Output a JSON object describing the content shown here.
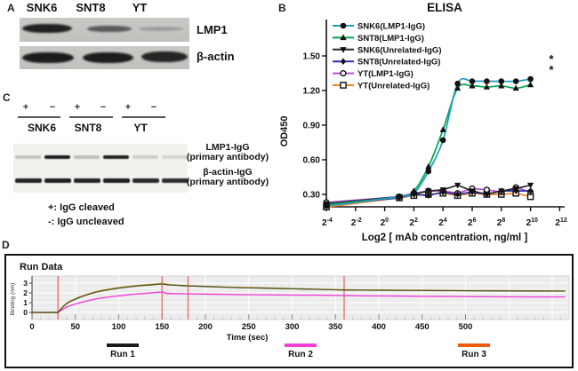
{
  "panels": {
    "a_label": "A",
    "b_label": "B",
    "c_label": "C",
    "d_label": "D"
  },
  "panel_a": {
    "lane_labels": [
      "SNK6",
      "SNT8",
      "YT"
    ],
    "row_labels": [
      "LMP1",
      "β-actin"
    ],
    "lmp1_band_opacities": [
      0.92,
      0.6,
      0.22
    ],
    "actin_band_opacities": [
      0.95,
      0.95,
      0.9
    ]
  },
  "panel_c": {
    "cleave_signs": [
      "+",
      "−",
      "+",
      "−",
      "+",
      "−"
    ],
    "cell_lines": [
      "SNK6",
      "SNT8",
      "YT"
    ],
    "row1_label_line1": "LMP1-IgG",
    "row1_label_line2": "(primary antibody)",
    "row2_label_line1": "β-actin-IgG",
    "row2_label_line2": "(primary antibody)",
    "lmp1_band_opacities": [
      0.2,
      0.95,
      0.22,
      0.92,
      0.15,
      0.12
    ],
    "actin_band_opacities": [
      0.92,
      0.95,
      0.92,
      0.95,
      0.9,
      0.88
    ],
    "footnotes": [
      "+: IgG cleaved",
      "-: IgG uncleaved"
    ]
  },
  "chart_data": [
    {
      "type": "line",
      "title": "ELISA",
      "xlabel": "Log2 [ mAb concentration, ng/ml ]",
      "ylabel": "OD450",
      "x_tick_exponents": [
        -4,
        -2,
        0,
        2,
        4,
        6,
        8,
        10,
        12
      ],
      "y_ticks": [
        0.3,
        0.6,
        0.9,
        1.2,
        1.5
      ],
      "x_exponents": [
        -4,
        1,
        2,
        3,
        4,
        5,
        6,
        7,
        8,
        9,
        10
      ],
      "significance_marks": [
        "*",
        "*"
      ],
      "legend_position": "top-left",
      "series": [
        {
          "name": "SNK6(LMP1-IgG)",
          "color": "#1f9cc0",
          "marker": "circle-filled",
          "smooth": true,
          "values": [
            0.2,
            0.28,
            0.31,
            0.5,
            0.77,
            1.26,
            1.28,
            1.28,
            1.28,
            1.28,
            1.3
          ]
        },
        {
          "name": "SNT8(LMP1-IgG)",
          "color": "#00a651",
          "marker": "triangle-up-filled",
          "smooth": true,
          "values": [
            0.21,
            0.28,
            0.33,
            0.54,
            0.86,
            1.22,
            1.24,
            1.23,
            1.24,
            1.22,
            1.25
          ]
        },
        {
          "name": "SNK6(Unrelated-IgG)",
          "color": "#2a2a2a",
          "marker": "triangle-down-filled",
          "smooth": false,
          "values": [
            0.22,
            0.28,
            0.3,
            0.33,
            0.34,
            0.38,
            0.33,
            0.3,
            0.33,
            0.35,
            0.38
          ]
        },
        {
          "name": "SNT8(Unrelated-IgG)",
          "color": "#2d2db3",
          "marker": "diamond-filled",
          "smooth": false,
          "values": [
            0.21,
            0.27,
            0.3,
            0.29,
            0.32,
            0.3,
            0.32,
            0.3,
            0.33,
            0.33,
            0.33
          ]
        },
        {
          "name": "YT(LMP1-IgG)",
          "color": "#b44fd2",
          "marker": "circle-open",
          "smooth": false,
          "values": [
            0.23,
            0.28,
            0.31,
            0.33,
            0.33,
            0.31,
            0.35,
            0.34,
            0.32,
            0.36,
            0.32
          ]
        },
        {
          "name": "YT(Unrelated-IgG)",
          "color": "#f5831f",
          "marker": "square-open",
          "smooth": false,
          "values": [
            0.19,
            0.27,
            0.29,
            0.3,
            0.31,
            0.29,
            0.31,
            0.3,
            0.3,
            0.31,
            0.28
          ]
        }
      ]
    },
    {
      "type": "line",
      "title": "Run Data",
      "xlabel": "Time (sec)",
      "ylabel": "Binding (nm)",
      "x_ticks": [
        0,
        50,
        100,
        150,
        200,
        250,
        300,
        350,
        400,
        450,
        500
      ],
      "y_ticks": [
        0,
        1,
        2,
        3
      ],
      "xlim": [
        0,
        618
      ],
      "ylim": [
        -0.7,
        3.7
      ],
      "event_line_times": [
        30,
        150,
        180,
        360
      ],
      "event_line_color": "#e46a6a",
      "series": [
        {
          "name": "Run 1",
          "color": "#47551f",
          "legend_color": "#1a1a1a",
          "points": [
            [
              0,
              0
            ],
            [
              28,
              0
            ],
            [
              30,
              0.05
            ],
            [
              40,
              0.9
            ],
            [
              50,
              1.35
            ],
            [
              60,
              1.7
            ],
            [
              75,
              2.1
            ],
            [
              90,
              2.35
            ],
            [
              105,
              2.55
            ],
            [
              120,
              2.7
            ],
            [
              135,
              2.8
            ],
            [
              150,
              2.9
            ],
            [
              158,
              2.82
            ],
            [
              170,
              2.76
            ],
            [
              180,
              2.72
            ],
            [
              210,
              2.62
            ],
            [
              240,
              2.54
            ],
            [
              270,
              2.48
            ],
            [
              300,
              2.42
            ],
            [
              330,
              2.36
            ],
            [
              360,
              2.3
            ],
            [
              380,
              2.28
            ],
            [
              420,
              2.26
            ],
            [
              460,
              2.24
            ],
            [
              500,
              2.22
            ],
            [
              550,
              2.2
            ],
            [
              615,
              2.18
            ]
          ]
        },
        {
          "name": "Run 2",
          "color": "#f13fd8",
          "legend_color": "#f13fd8",
          "points": [
            [
              0,
              0
            ],
            [
              28,
              0
            ],
            [
              30,
              0.03
            ],
            [
              40,
              0.55
            ],
            [
              50,
              0.85
            ],
            [
              60,
              1.1
            ],
            [
              75,
              1.4
            ],
            [
              90,
              1.6
            ],
            [
              105,
              1.75
            ],
            [
              120,
              1.88
            ],
            [
              135,
              1.98
            ],
            [
              150,
              2.08
            ],
            [
              155,
              1.95
            ],
            [
              170,
              1.92
            ],
            [
              180,
              1.9
            ],
            [
              210,
              1.86
            ],
            [
              240,
              1.83
            ],
            [
              270,
              1.8
            ],
            [
              300,
              1.78
            ],
            [
              330,
              1.76
            ],
            [
              360,
              1.74
            ],
            [
              380,
              1.7
            ],
            [
              420,
              1.68
            ],
            [
              460,
              1.65
            ],
            [
              500,
              1.62
            ],
            [
              550,
              1.6
            ],
            [
              615,
              1.58
            ]
          ]
        },
        {
          "name": "Run 3",
          "color": "#e09a35",
          "legend_color": "#ed5a10",
          "points": [
            [
              0,
              0
            ],
            [
              28,
              0
            ],
            [
              30,
              0.05
            ],
            [
              40,
              0.95
            ],
            [
              50,
              1.4
            ],
            [
              60,
              1.75
            ],
            [
              75,
              2.15
            ],
            [
              90,
              2.4
            ],
            [
              105,
              2.6
            ],
            [
              120,
              2.75
            ],
            [
              135,
              2.85
            ],
            [
              150,
              2.95
            ],
            [
              158,
              2.85
            ],
            [
              170,
              2.78
            ],
            [
              180,
              2.74
            ],
            [
              210,
              2.64
            ],
            [
              240,
              2.56
            ],
            [
              270,
              2.5
            ],
            [
              300,
              2.44
            ],
            [
              330,
              2.38
            ],
            [
              360,
              2.32
            ],
            [
              380,
              2.3
            ],
            [
              420,
              2.28
            ],
            [
              460,
              2.26
            ],
            [
              500,
              2.24
            ],
            [
              550,
              2.22
            ],
            [
              615,
              2.2
            ]
          ]
        }
      ]
    }
  ]
}
